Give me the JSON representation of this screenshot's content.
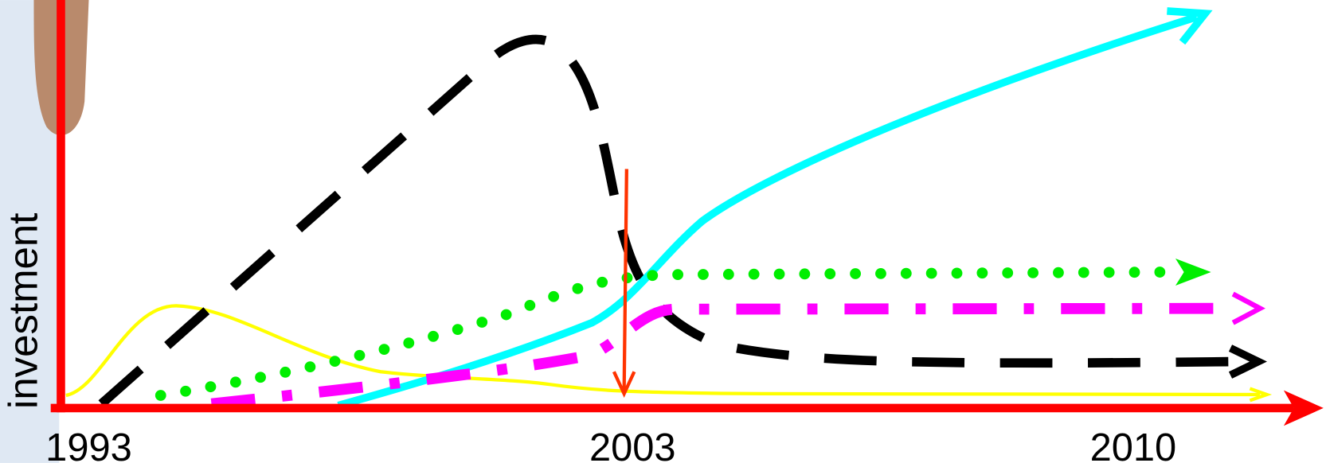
{
  "axis": {
    "y_label": "investment",
    "x_labels": [
      "1993",
      "2003",
      "2010"
    ]
  }
}
